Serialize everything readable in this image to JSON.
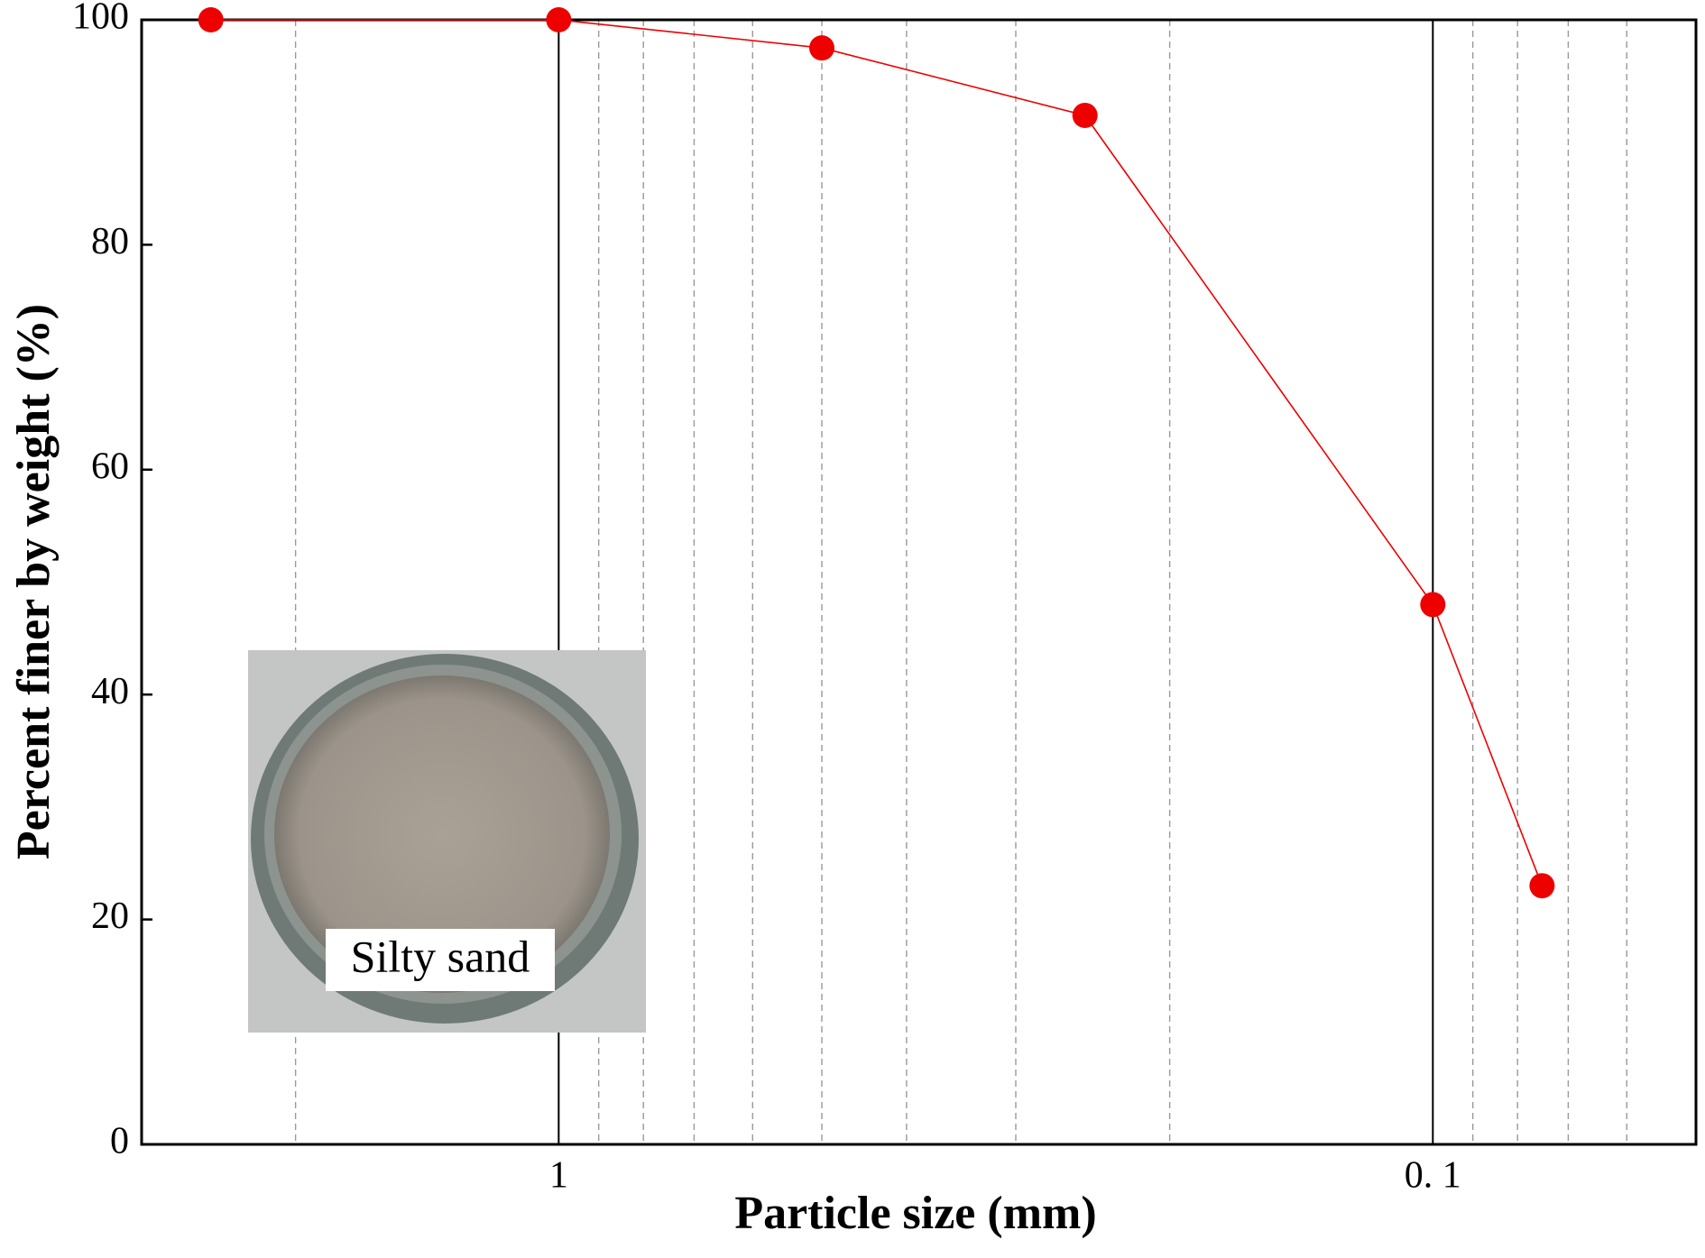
{
  "chart_data": {
    "type": "line",
    "x_label": "Particle size (mm)",
    "y_label": "Percent finer by weight (%)",
    "x": [
      2.5,
      1,
      0.5,
      0.25,
      0.1,
      0.075
    ],
    "series": [
      {
        "color": "#ee0000",
        "values": [
          100,
          100,
          97.5,
          91.5,
          48,
          23
        ]
      }
    ],
    "xscale": "log",
    "xlim": [
      3,
      0.05
    ],
    "xticks": [
      1,
      {
        "value": 0.1,
        "label": "0. 1"
      }
    ],
    "xminorticks": [
      2,
      0.9,
      0.8,
      0.7,
      0.6,
      0.5,
      0.4,
      0.3,
      0.2,
      0.09,
      0.08,
      0.07,
      0.06
    ],
    "ylim": [
      0,
      100
    ],
    "yticks": [
      0,
      20,
      40,
      60,
      80,
      100
    ],
    "grid": true,
    "inset_label": "Silty sand"
  }
}
